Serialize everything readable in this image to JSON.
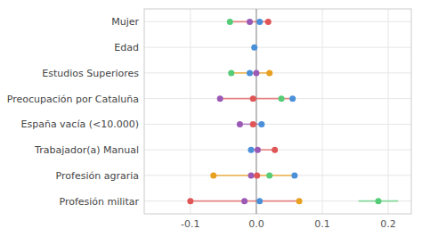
{
  "chart_data": {
    "type": "dot",
    "orientation": "horizontal",
    "categories": [
      "Mujer",
      "Edad",
      "Estudios Superiores",
      "Preocupación por Cataluña",
      "España vacía (<10.000)",
      "Trabajador(a) Manual",
      "Profesión agraria",
      "Profesión militar"
    ],
    "series": [
      {
        "color": "#e05555",
        "values": [
          0.018,
          null,
          null,
          -0.005,
          -0.005,
          0.028,
          0.001,
          -0.1
        ]
      },
      {
        "color": "#9b59b6",
        "values": [
          -0.01,
          null,
          0.0,
          -0.055,
          -0.025,
          0.002,
          -0.008,
          -0.018
        ]
      },
      {
        "color": "#4a90d9",
        "values": [
          0.005,
          -0.003,
          -0.01,
          0.055,
          0.008,
          -0.008,
          0.058,
          0.005
        ]
      },
      {
        "color": "#55cc77",
        "values": [
          -0.04,
          null,
          -0.038,
          0.038,
          null,
          null,
          0.02,
          0.185
        ]
      },
      {
        "color": "#e8a020",
        "values": [
          null,
          null,
          0.02,
          null,
          null,
          null,
          -0.065,
          0.065
        ]
      }
    ],
    "ranges": [
      {
        "category": "Mujer",
        "x_min": -0.04,
        "x_max": 0.018,
        "color": "#e05555"
      },
      {
        "category": "Estudios Superiores",
        "x_min": -0.038,
        "x_max": 0.02,
        "color": "#e8a020"
      },
      {
        "category": "Preocupación por Cataluña",
        "x_min": -0.055,
        "x_max": 0.055,
        "color": "#e05555"
      },
      {
        "category": "España vacía (<10.000)",
        "x_min": -0.025,
        "x_max": 0.008,
        "color": "#9b59b6"
      },
      {
        "category": "Trabajador(a) Manual",
        "x_min": -0.008,
        "x_max": 0.028,
        "color": "#e05555"
      },
      {
        "category": "Profesión agraria",
        "x_min": -0.065,
        "x_max": 0.058,
        "color": "#e8a020"
      },
      {
        "category": "Profesión militar",
        "x_min": -0.1,
        "x_max": 0.065,
        "color": "#e05555"
      },
      {
        "category": "Profesión militar",
        "x_min": 0.155,
        "x_max": 0.215,
        "color": "#55cc77"
      }
    ],
    "vline": 0,
    "xlim": [
      -0.17,
      0.235
    ],
    "xticks": [
      -0.1,
      {
        "value": 0.0,
        "label": "0.0"
      },
      0.1,
      0.2
    ],
    "grid": true
  }
}
